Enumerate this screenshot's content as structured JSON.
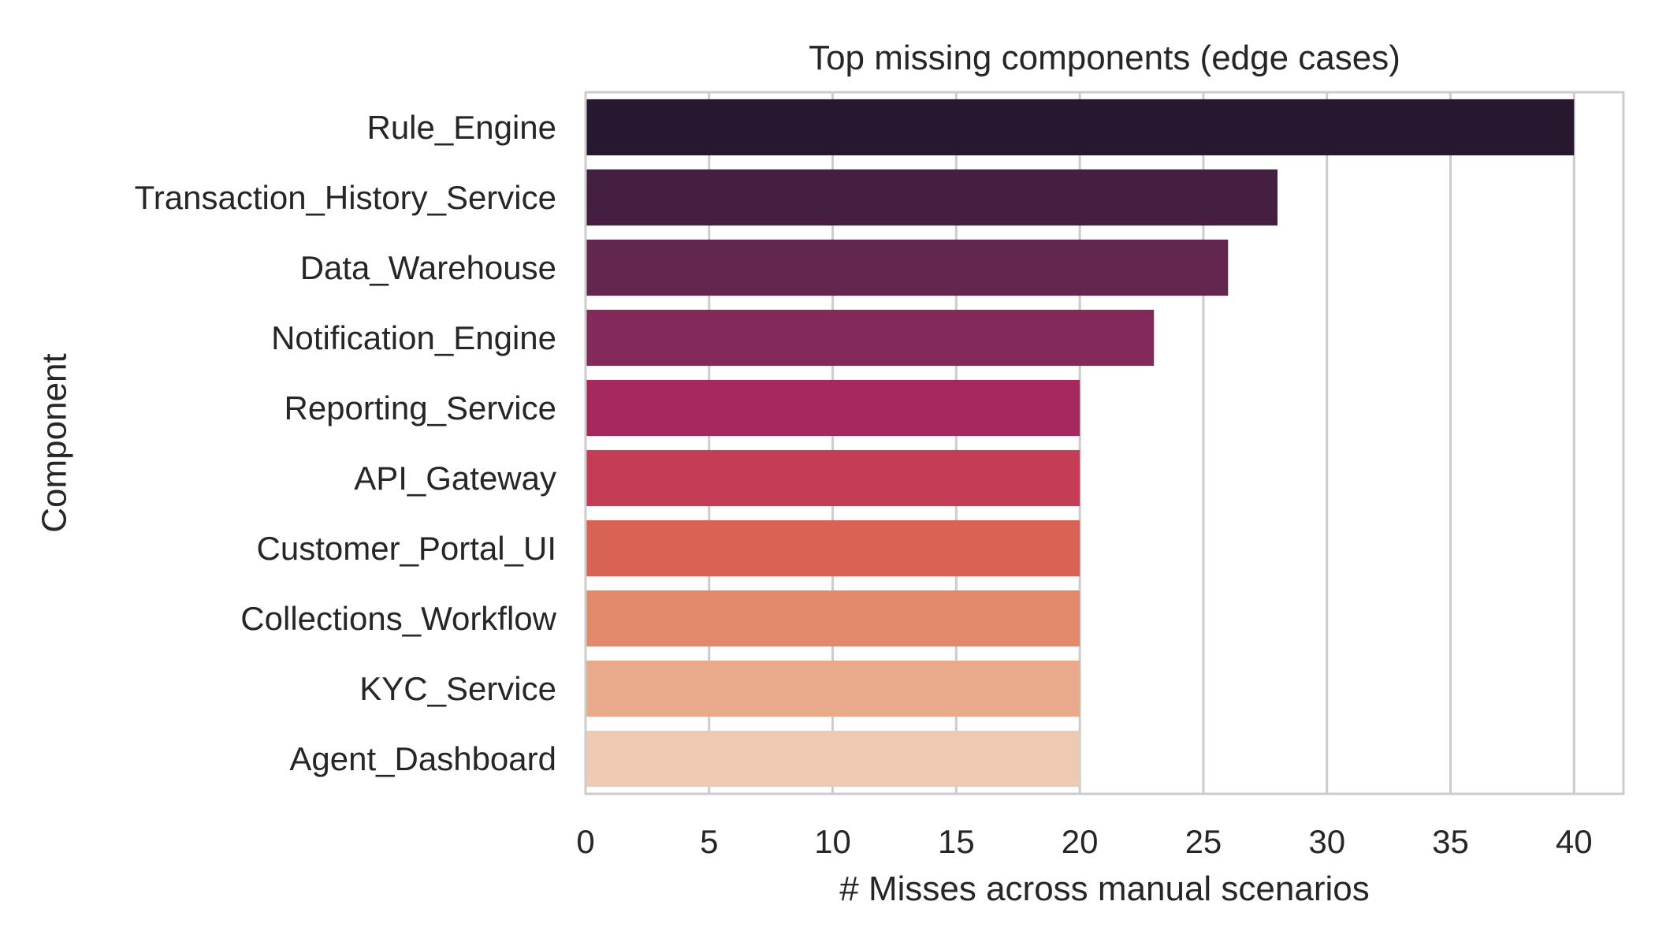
{
  "chart_data": {
    "type": "bar",
    "orientation": "horizontal",
    "title": "Top missing components (edge cases)",
    "xlabel": "# Misses across manual scenarios",
    "ylabel": "Component",
    "categories": [
      "Rule_Engine",
      "Transaction_History_Service",
      "Data_Warehouse",
      "Notification_Engine",
      "Reporting_Service",
      "API_Gateway",
      "Customer_Portal_UI",
      "Collections_Workflow",
      "KYC_Service",
      "Agent_Dashboard"
    ],
    "values": [
      40,
      28,
      26,
      23,
      20,
      20,
      20,
      20,
      20,
      20
    ],
    "colors": [
      "#27182f",
      "#441f42",
      "#62264f",
      "#842a5b",
      "#a6295d",
      "#c43c56",
      "#d86355",
      "#e2896b",
      "#e8aa8a",
      "#eecab3"
    ],
    "xlim": [
      0,
      42
    ],
    "xticks": [
      0,
      5,
      10,
      15,
      20,
      25,
      30,
      35,
      40
    ],
    "grid": true,
    "grid_color": "#cccccc",
    "frame_color": "#cccccc",
    "legend": "none"
  }
}
